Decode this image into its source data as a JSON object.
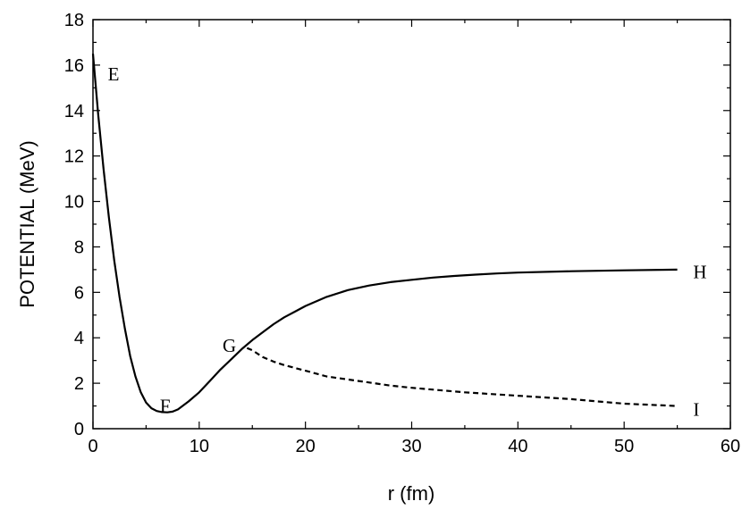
{
  "chart_data": {
    "type": "line",
    "xlabel": "r (fm)",
    "ylabel": "POTENTIAL (MeV)",
    "xlim": [
      0,
      60
    ],
    "ylim": [
      0,
      18
    ],
    "xticks": [
      0,
      10,
      20,
      30,
      40,
      50,
      60
    ],
    "yticks": [
      0,
      2,
      4,
      6,
      8,
      10,
      12,
      14,
      16,
      18
    ],
    "grid": false,
    "legend": "none",
    "series": [
      {
        "style": "solid",
        "color": "#000000",
        "x": [
          0,
          0.5,
          1,
          1.5,
          2,
          2.5,
          3,
          3.5,
          4,
          4.5,
          5,
          5.5,
          6,
          6.5,
          7,
          7.5,
          8,
          9,
          10,
          11,
          12,
          13,
          14,
          15,
          16,
          17,
          18,
          19,
          20,
          22,
          24,
          26,
          28,
          30,
          32,
          34,
          36,
          38,
          40,
          45,
          50,
          55
        ],
        "y": [
          16.5,
          13.8,
          11.4,
          9.3,
          7.4,
          5.8,
          4.4,
          3.2,
          2.3,
          1.6,
          1.15,
          0.9,
          0.78,
          0.73,
          0.72,
          0.75,
          0.85,
          1.2,
          1.6,
          2.1,
          2.6,
          3.05,
          3.5,
          3.9,
          4.25,
          4.6,
          4.9,
          5.15,
          5.4,
          5.8,
          6.1,
          6.3,
          6.45,
          6.55,
          6.65,
          6.72,
          6.78,
          6.83,
          6.87,
          6.93,
          6.97,
          7.0
        ]
      },
      {
        "style": "dashed",
        "color": "#000000",
        "x": [
          14.5,
          15,
          16,
          17,
          18,
          20,
          22,
          25,
          28,
          30,
          35,
          40,
          45,
          50,
          55
        ],
        "y": [
          3.55,
          3.45,
          3.15,
          2.95,
          2.8,
          2.55,
          2.3,
          2.1,
          1.9,
          1.8,
          1.6,
          1.45,
          1.3,
          1.1,
          1.0
        ]
      }
    ],
    "annotations": [
      {
        "text": "E",
        "x": 1.4,
        "y": 15.6
      },
      {
        "text": "F",
        "x": 6.3,
        "y": 1.0
      },
      {
        "text": "G",
        "x": 12.2,
        "y": 3.65
      },
      {
        "text": "H",
        "x": 56.5,
        "y": 6.9
      },
      {
        "text": "I",
        "x": 56.5,
        "y": 0.85
      }
    ]
  }
}
